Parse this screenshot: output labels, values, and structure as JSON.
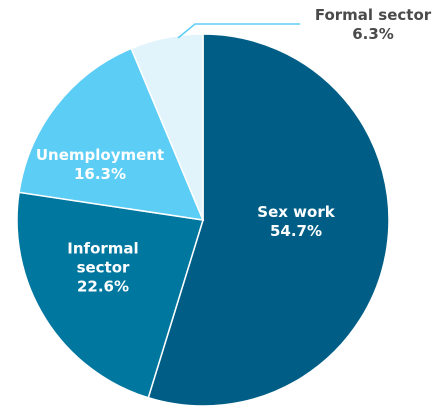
{
  "chart_data": {
    "type": "pie",
    "title": "",
    "slices": [
      {
        "name": "Sex work",
        "lines": [
          "Sex work"
        ],
        "value": 54.7,
        "label": "54.7%",
        "color": "#005e86",
        "text_color": "#ffffff"
      },
      {
        "name": "Informal sector",
        "lines": [
          "Informal",
          "sector"
        ],
        "value": 22.6,
        "label": "22.6%",
        "color": "#00779f",
        "text_color": "#ffffff"
      },
      {
        "name": "Unemployment",
        "lines": [
          "Unemployment"
        ],
        "value": 16.3,
        "label": "16.3%",
        "color": "#5ccdf5",
        "text_color": "#ffffff"
      },
      {
        "name": "Formal sector",
        "lines": [
          "Formal sector"
        ],
        "value": 6.3,
        "label": "6.3%",
        "color": "#e1f4fb",
        "text_color": "#4a4a4a"
      }
    ],
    "start": "12 o'clock",
    "direction": "clockwise",
    "legend": "none"
  }
}
